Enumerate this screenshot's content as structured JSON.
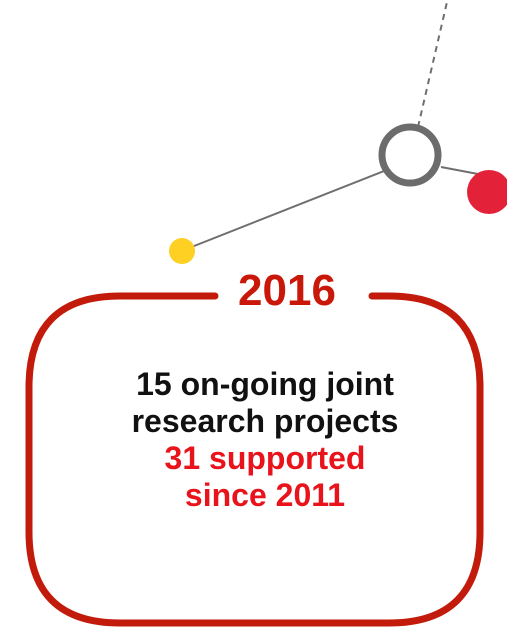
{
  "milestone": {
    "year": "2016",
    "lines": [
      {
        "text": "15 on-going joint",
        "style": "dark"
      },
      {
        "text": "research projects",
        "style": "dark"
      },
      {
        "text": "31 supported",
        "style": "accent"
      },
      {
        "text": "since 2011",
        "style": "accent"
      }
    ]
  },
  "colors": {
    "frame": "#c21a0b",
    "year_text": "#c9170a",
    "accent_text": "#e8131b",
    "body_text": "#111111",
    "connector": "#6f6f6f",
    "yellow_dot": "#fdd023",
    "red_dot": "#e3223a",
    "hollow_node_stroke": "#6c6c6c"
  }
}
